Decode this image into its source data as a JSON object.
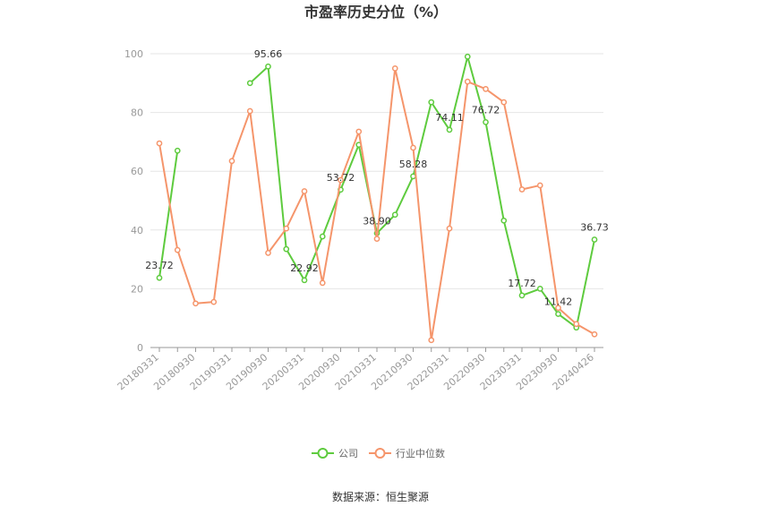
{
  "chart_data": {
    "type": "line",
    "title": "市盈率历史分位（%）",
    "source": "数据来源：恒生聚源",
    "ylim": [
      0,
      100
    ],
    "yticks": [
      0,
      20,
      40,
      60,
      80,
      100
    ],
    "grid": true,
    "legend_position": "bottom",
    "x_labels": [
      "20180331",
      "20180930",
      "20190331",
      "20190930",
      "20200331",
      "20200930",
      "20210331",
      "20210930",
      "20220331",
      "20220930",
      "20230331",
      "20230930",
      "20240426"
    ],
    "x": [
      "20180331",
      "20180630",
      "20180930",
      "20181231",
      "20190331",
      "20190630",
      "20190930",
      "20191231",
      "20200331",
      "20200630",
      "20200930",
      "20201231",
      "20210331",
      "20210630",
      "20210930",
      "20211231",
      "20220331",
      "20220630",
      "20220930",
      "20221231",
      "20230331",
      "20230630",
      "20230930",
      "20231231",
      "20240426"
    ],
    "series": [
      {
        "name": "公司",
        "color": "#5ecb3e",
        "values": [
          23.72,
          67.0,
          null,
          null,
          null,
          90.0,
          95.66,
          33.5,
          22.92,
          37.8,
          53.72,
          69.0,
          38.9,
          45.2,
          58.28,
          83.5,
          74.11,
          99.0,
          76.72,
          43.2,
          17.72,
          20.0,
          11.42,
          6.8,
          36.73
        ],
        "labels": [
          {
            "index": 0,
            "text": "23.72"
          },
          {
            "index": 6,
            "text": "95.66"
          },
          {
            "index": 8,
            "text": "22.92"
          },
          {
            "index": 10,
            "text": "53.72"
          },
          {
            "index": 12,
            "text": "38.90"
          },
          {
            "index": 14,
            "text": "58.28"
          },
          {
            "index": 16,
            "text": "74.11"
          },
          {
            "index": 18,
            "text": "76.72"
          },
          {
            "index": 20,
            "text": "17.72"
          },
          {
            "index": 22,
            "text": "11.42"
          },
          {
            "index": 24,
            "text": "36.73"
          }
        ]
      },
      {
        "name": "行业中位数",
        "color": "#f5956b",
        "values": [
          69.5,
          33.2,
          15.0,
          15.5,
          63.5,
          80.5,
          32.2,
          40.5,
          53.2,
          22.0,
          57.0,
          73.5,
          37.0,
          95.0,
          68.0,
          2.5,
          40.5,
          90.5,
          88.0,
          83.5,
          53.8,
          55.2,
          13.5,
          8.0,
          4.5
        ]
      }
    ]
  }
}
